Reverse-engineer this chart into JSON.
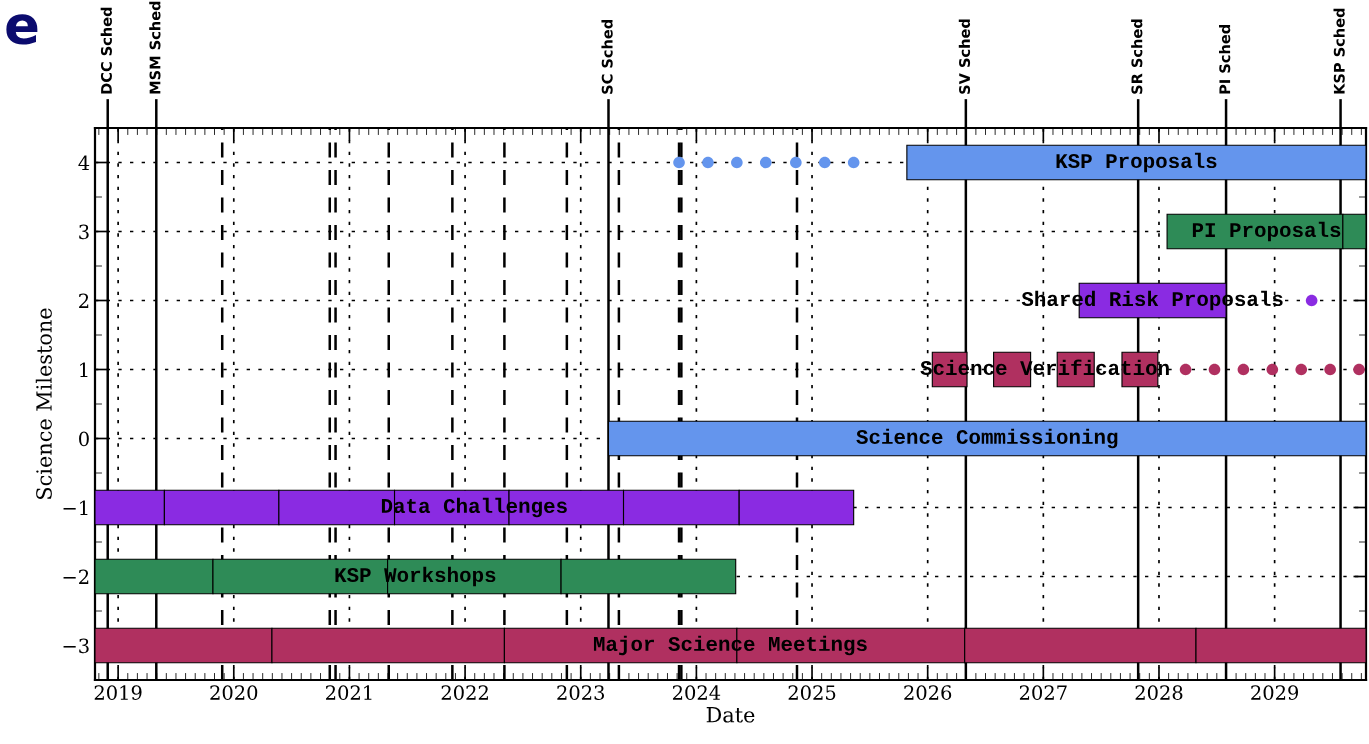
{
  "chart_data": {
    "type": "bar",
    "orientation": "horizontal",
    "title": "e",
    "xlabel": "Date",
    "ylabel": "Science Milestone",
    "categories": [
      "4",
      "3",
      "2",
      "1",
      "0",
      "−1",
      "−2",
      "−3"
    ],
    "xlim": [
      2018.8,
      2029.79
    ],
    "xticks": [
      2019,
      2020,
      2021,
      2022,
      2023,
      2024,
      2025,
      2026,
      2027,
      2028,
      2029
    ],
    "grid": true,
    "series": [
      {
        "values": [
          3.97,
          1.52,
          1.27,
          0.3,
          6.55,
          0.6,
          1.02,
          1.53
        ],
        "base": [
          2025.82,
          2028.07,
          2027.31,
          2026.04,
          2023.24,
          2018.8,
          2018.8,
          2018.8
        ],
        "colors": [
          "#6495ed",
          "#2e8b57",
          "#8a2be2",
          "#b03060",
          "#6495ed",
          "#8a2be2",
          "#2e8b57",
          "#b03060"
        ]
      },
      {
        "values": [
          null,
          0.2,
          null,
          0.32,
          null,
          0.99,
          1.51,
          2.01
        ],
        "base": [
          null,
          2029.59,
          null,
          2026.57,
          null,
          2019.4,
          2019.82,
          2020.33
        ],
        "colors": [
          "#6495ed",
          "#2e8b57",
          "#8a2be2",
          "#b03060",
          "#6495ed",
          "#8a2be2",
          "#2e8b57",
          "#b03060"
        ]
      },
      {
        "values": [
          null,
          null,
          null,
          0.32,
          null,
          1.0,
          1.5,
          2.01
        ],
        "base": [
          null,
          null,
          null,
          2027.12,
          null,
          2020.39,
          2021.33,
          2022.34
        ],
        "colors": [
          "#6495ed",
          "#2e8b57",
          "#8a2be2",
          "#b03060",
          "#6495ed",
          "#8a2be2",
          "#2e8b57",
          "#b03060"
        ]
      },
      {
        "values": [
          null,
          null,
          null,
          0.31,
          null,
          0.99,
          1.51,
          1.97
        ],
        "base": [
          null,
          null,
          null,
          2027.68,
          null,
          2021.39,
          2022.83,
          2024.35
        ],
        "colors": [
          "#6495ed",
          "#2e8b57",
          "#8a2be2",
          "#b03060",
          "#6495ed",
          "#8a2be2",
          "#2e8b57",
          "#b03060"
        ]
      },
      {
        "values": [
          null,
          null,
          null,
          null,
          null,
          0.99,
          null,
          2.0
        ],
        "base": [
          null,
          null,
          null,
          null,
          null,
          2022.38,
          null,
          2026.32
        ],
        "colors": [
          "#6495ed",
          "#2e8b57",
          "#8a2be2",
          "#b03060",
          "#6495ed",
          "#8a2be2",
          "#2e8b57",
          "#b03060"
        ]
      },
      {
        "values": [
          null,
          null,
          null,
          null,
          null,
          1.0,
          null,
          1.47
        ],
        "base": [
          null,
          null,
          null,
          null,
          null,
          2023.37,
          null,
          2028.32
        ],
        "colors": [
          "#6495ed",
          "#2e8b57",
          "#8a2be2",
          "#b03060",
          "#6495ed",
          "#8a2be2",
          "#2e8b57",
          "#b03060"
        ]
      },
      {
        "values": [
          null,
          null,
          null,
          null,
          null,
          0.99,
          null,
          null
        ],
        "base": [
          null,
          null,
          null,
          null,
          null,
          2024.37,
          null,
          null
        ],
        "colors": [
          "#6495ed",
          "#2e8b57",
          "#8a2be2",
          "#b03060",
          "#6495ed",
          "#8a2be2",
          "#2e8b57",
          "#b03060"
        ]
      },
      {
        "type": "scatter",
        "marker": "circle",
        "color": "#6495ed",
        "x": [
          "4",
          "4",
          "4",
          "4",
          "4",
          "4",
          "4"
        ],
        "values": [
          2023.85,
          2024.1,
          2024.35,
          2024.6,
          2024.86,
          2025.11,
          2025.36
        ]
      },
      {
        "type": "scatter",
        "marker": "circle",
        "color": "#8a2be2",
        "x": [
          "2"
        ],
        "values": [
          2029.32
        ]
      },
      {
        "type": "scatter",
        "marker": "circle",
        "color": "#b03060",
        "x": [
          "1",
          "1",
          "1",
          "1",
          "1",
          "1",
          "1"
        ],
        "values": [
          2028.23,
          2028.48,
          2028.73,
          2028.98,
          2029.23,
          2029.48,
          2029.73
        ]
      }
    ],
    "annotations": [
      "KSP Proposals",
      "PI Proposals",
      "Shared Risk Proposals",
      "Science Verification",
      "Science Commissioning",
      "Data Challenges",
      "KSP Workshops",
      "Major Science Meetings"
    ],
    "ref_lines": [
      {
        "axis": "x",
        "value": 2018.91,
        "label": "DCC Sched",
        "line_style": "solid"
      },
      {
        "axis": "x",
        "value": 2019.33,
        "label": "MSM Sched",
        "line_style": "solid"
      },
      {
        "axis": "x",
        "value": 2023.24,
        "label": "SC Sched",
        "line_style": "solid"
      },
      {
        "axis": "x",
        "value": 2026.33,
        "label": "SV Sched",
        "line_style": "solid"
      },
      {
        "axis": "x",
        "value": 2027.82,
        "label": "SR Sched",
        "line_style": "solid"
      },
      {
        "axis": "x",
        "value": 2028.58,
        "label": "PI Sched",
        "line_style": "solid"
      },
      {
        "axis": "x",
        "value": 2029.57,
        "label": "KSP Sched",
        "line_style": "solid"
      },
      {
        "axis": "x",
        "value": 2019.9,
        "line_style": "dashed"
      },
      {
        "axis": "x",
        "value": 2020.83,
        "line_style": "dashed"
      },
      {
        "axis": "x",
        "value": 2020.88,
        "line_style": "dashed"
      },
      {
        "axis": "x",
        "value": 2021.34,
        "line_style": "dashed"
      },
      {
        "axis": "x",
        "value": 2021.89,
        "line_style": "dashed"
      },
      {
        "axis": "x",
        "value": 2022.34,
        "line_style": "dashed"
      },
      {
        "axis": "x",
        "value": 2022.88,
        "line_style": "dashed"
      },
      {
        "axis": "x",
        "value": 2023.33,
        "line_style": "dashed"
      },
      {
        "axis": "x",
        "value": 2023.85,
        "line_style": "dashed"
      },
      {
        "axis": "x",
        "value": 2023.87,
        "line_style": "dashed"
      },
      {
        "axis": "x",
        "value": 2024.87,
        "line_style": "dashed"
      }
    ]
  }
}
